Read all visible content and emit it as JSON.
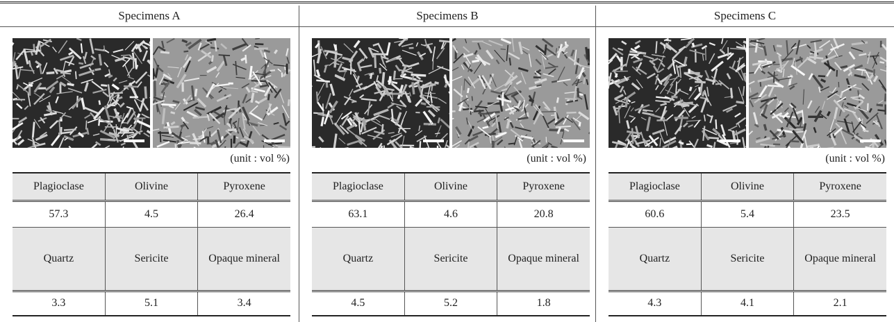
{
  "specimens": [
    {
      "title": "Specimens A",
      "unit": "(unit : vol %)",
      "rows": [
        [
          "Plagioclase",
          "Olivine",
          "Pyroxene"
        ],
        [
          57.3,
          4.5,
          26.4
        ],
        [
          "Quartz",
          "Sericite",
          "Opaque mineral"
        ],
        [
          3.3,
          5.1,
          3.4
        ]
      ]
    },
    {
      "title": "Specimens B",
      "unit": "(unit : vol %)",
      "rows": [
        [
          "Plagioclase",
          "Olivine",
          "Pyroxene"
        ],
        [
          63.1,
          4.6,
          20.8
        ],
        [
          "Quartz",
          "Sericite",
          "Opaque mineral"
        ],
        [
          4.5,
          5.2,
          1.8
        ]
      ]
    },
    {
      "title": "Specimens C",
      "unit": "(unit : vol %)",
      "rows": [
        [
          "Plagioclase",
          "Olivine",
          "Pyroxene"
        ],
        [
          60.6,
          5.4,
          23.5
        ],
        [
          "Quartz",
          "Sericite",
          "Opaque mineral"
        ],
        [
          4.3,
          4.1,
          2.1
        ]
      ]
    }
  ]
}
